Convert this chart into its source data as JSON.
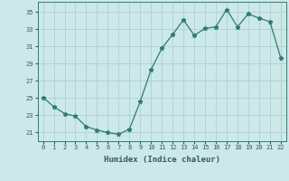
{
  "x": [
    0,
    1,
    2,
    3,
    4,
    5,
    6,
    7,
    8,
    9,
    10,
    11,
    12,
    13,
    14,
    15,
    16,
    17,
    18,
    19,
    20,
    21,
    22
  ],
  "y": [
    25.1,
    24.0,
    23.2,
    22.9,
    21.7,
    21.3,
    21.0,
    20.8,
    21.4,
    24.6,
    28.3,
    30.8,
    32.4,
    34.1,
    32.3,
    33.1,
    33.3,
    35.3,
    33.3,
    34.8,
    34.3,
    33.9,
    29.7
  ],
  "xlabel": "Humidex (Indice chaleur)",
  "ylabel": "",
  "xlim": [
    -0.5,
    22.5
  ],
  "ylim": [
    20.0,
    36.2
  ],
  "yticks": [
    21,
    23,
    25,
    27,
    29,
    31,
    33,
    35
  ],
  "xticks": [
    0,
    1,
    2,
    3,
    4,
    5,
    6,
    7,
    8,
    9,
    10,
    11,
    12,
    13,
    14,
    15,
    16,
    17,
    18,
    19,
    20,
    21,
    22
  ],
  "line_color": "#2e7d6e",
  "marker": "*",
  "bg_color": "#cce8e8",
  "grid_color": "#b0d4d4",
  "label_color": "#2e5d5a",
  "tick_color": "#2e5d5a"
}
